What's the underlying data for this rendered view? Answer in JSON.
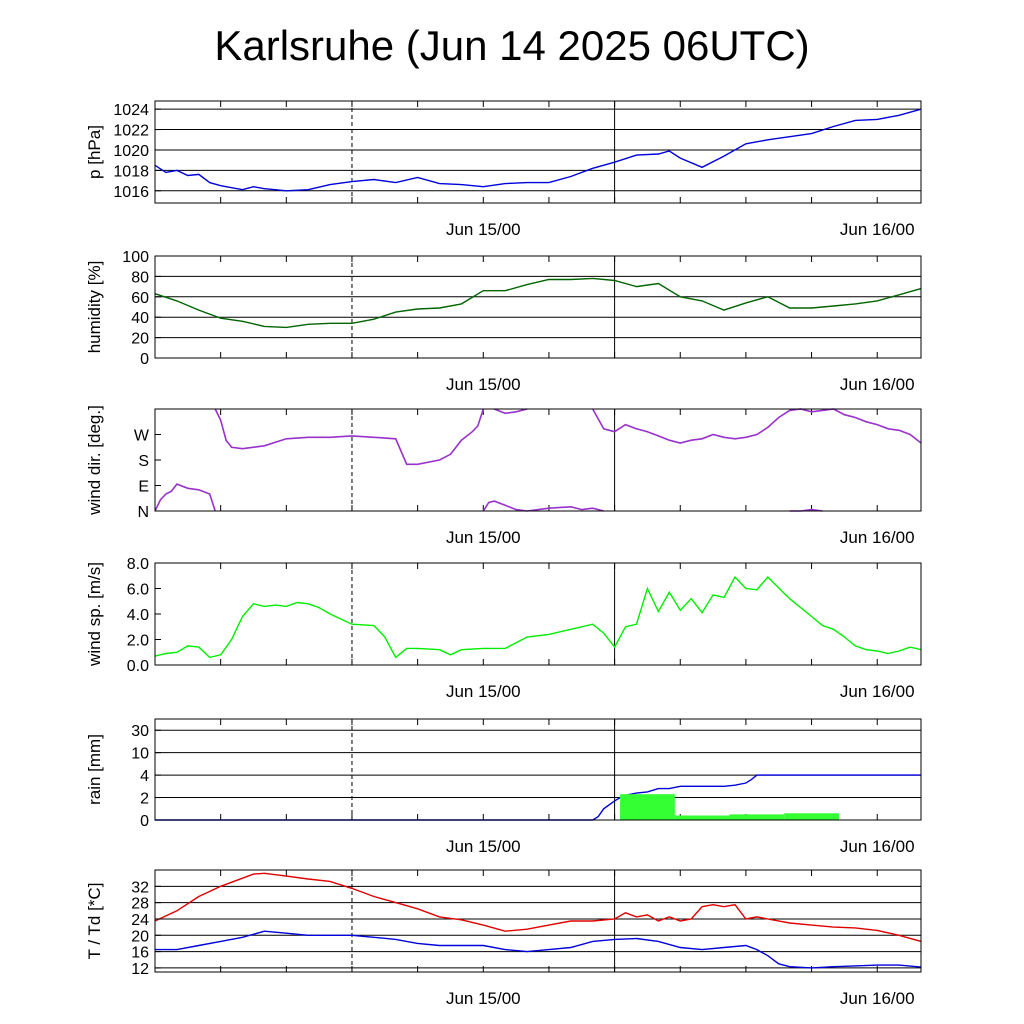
{
  "title": "Karlsruhe (Jun 14 2025 06UTC)",
  "x_ticks": [
    "Jun 15/00",
    "Jun 16/00"
  ],
  "colors": {
    "pressure": "#0000dd",
    "humidity": "#006400",
    "wind_dir": "#9932cc",
    "wind_speed": "#00ee00",
    "rain_cum": "#0000dd",
    "rain_bar": "#33ff33",
    "temperature": "#e00000",
    "dewpoint": "#0000dd"
  },
  "chart_data": [
    {
      "id": "pressure",
      "type": "line",
      "ylabel": "p [hPa]",
      "ylim": [
        1014.8,
        1024.8
      ],
      "yticks": [
        1016,
        1018,
        1020,
        1022,
        1024
      ],
      "yticklabels": [
        "1016",
        "1018",
        "1020",
        "1022",
        "1024"
      ],
      "grid": true,
      "x_unit": "hours since Jun 14 06UTC",
      "series": [
        {
          "color_key": "pressure",
          "x": [
            0,
            1,
            2,
            3,
            4,
            5,
            6,
            7,
            8,
            9,
            10,
            11,
            12,
            14,
            16,
            18,
            20,
            22,
            24,
            26,
            28,
            30,
            32,
            34,
            36,
            38,
            40,
            42,
            44,
            46,
            47,
            48,
            50,
            52,
            54,
            56,
            58,
            60,
            62,
            64,
            66,
            68,
            70
          ],
          "y": [
            1018.5,
            1017.8,
            1018.0,
            1017.5,
            1017.6,
            1016.8,
            1016.5,
            1016.3,
            1016.1,
            1016.4,
            1016.2,
            1016.1,
            1016.0,
            1016.1,
            1016.6,
            1016.9,
            1017.1,
            1016.8,
            1017.3,
            1016.7,
            1016.6,
            1016.4,
            1016.7,
            1016.8,
            1016.8,
            1017.4,
            1018.2,
            1018.8,
            1019.5,
            1019.6,
            1019.9,
            1019.2,
            1018.3,
            1019.4,
            1020.6,
            1021.0,
            1021.3,
            1021.6,
            1022.3,
            1022.9,
            1023.0,
            1023.4,
            1024.0
          ]
        }
      ]
    },
    {
      "id": "humidity",
      "type": "line",
      "ylabel": "humidity [%]",
      "ylim": [
        0,
        100
      ],
      "yticks": [
        0,
        20,
        40,
        60,
        80,
        100
      ],
      "yticklabels": [
        "0",
        "20",
        "40",
        "60",
        "80",
        "100"
      ],
      "grid": true,
      "series": [
        {
          "color_key": "humidity",
          "x": [
            0,
            2,
            4,
            6,
            8,
            10,
            12,
            14,
            16,
            18,
            20,
            22,
            24,
            26,
            28,
            30,
            32,
            34,
            36,
            38,
            40,
            42,
            44,
            46,
            48,
            50,
            52,
            54,
            56,
            58,
            60,
            62,
            64,
            66,
            68,
            70
          ],
          "y": [
            63,
            56,
            47,
            39,
            36,
            31,
            30,
            33,
            34,
            34,
            38,
            45,
            48,
            49,
            53,
            66,
            66,
            72,
            77,
            77,
            78,
            76,
            70,
            73,
            60,
            56,
            47,
            54,
            60,
            49,
            49,
            51,
            53,
            56,
            62,
            68
          ]
        }
      ]
    },
    {
      "id": "wind_dir",
      "type": "line",
      "ylabel": "wind dir. [deg.]",
      "ylim": [
        0,
        360
      ],
      "yticks": [
        0,
        90,
        180,
        270
      ],
      "yticklabels": [
        "N",
        "E",
        "S",
        "W"
      ],
      "grid": false,
      "series": [
        {
          "color_key": "wind_dir",
          "segments": [
            {
              "x": [
                0,
                0.5,
                1,
                1.5,
                2,
                3,
                4,
                5,
                5.5
              ],
              "y": [
                0,
                40,
                60,
                70,
                95,
                80,
                75,
                60,
                0
              ]
            },
            {
              "x": [
                5.5,
                6,
                6.5,
                7,
                8,
                10,
                12,
                14,
                16,
                18,
                20,
                22,
                22.5,
                23,
                24,
                26,
                27,
                28,
                29,
                29.5,
                30
              ],
              "y": [
                360,
                320,
                250,
                225,
                220,
                230,
                255,
                260,
                260,
                265,
                260,
                255,
                210,
                165,
                165,
                180,
                200,
                250,
                280,
                300,
                360
              ]
            },
            {
              "x": [
                30,
                30.5,
                31,
                32,
                33,
                34,
                36,
                38,
                39,
                40,
                41
              ],
              "y": [
                0,
                30,
                35,
                20,
                5,
                0,
                10,
                15,
                5,
                10,
                0
              ]
            },
            {
              "x": [
                31,
                32,
                33,
                34
              ],
              "y": [
                360,
                345,
                350,
                360
              ]
            },
            {
              "x": [
                40,
                41,
                42,
                43,
                44,
                45,
                46,
                47,
                48,
                49,
                50,
                51,
                52,
                53,
                54,
                55,
                56,
                57,
                58,
                59,
                60,
                61,
                62,
                63,
                64,
                65,
                66,
                67,
                68,
                69,
                70
              ],
              "y": [
                360,
                290,
                280,
                305,
                290,
                280,
                265,
                250,
                240,
                250,
                255,
                270,
                260,
                255,
                260,
                270,
                295,
                330,
                355,
                360,
                350,
                355,
                360,
                340,
                330,
                315,
                305,
                290,
                285,
                270,
                240
              ]
            },
            {
              "x": [
                58,
                59,
                60,
                61
              ],
              "y": [
                0,
                0,
                5,
                0
              ]
            }
          ]
        }
      ]
    },
    {
      "id": "wind_speed",
      "type": "line",
      "ylabel": "wind sp. [m/s]",
      "ylim": [
        0,
        8
      ],
      "yticks": [
        0,
        2,
        4,
        6,
        8
      ],
      "yticklabels": [
        "0.0",
        "2.0",
        "4.0",
        "6.0",
        "8.0"
      ],
      "grid": false,
      "series": [
        {
          "color_key": "wind_speed",
          "x": [
            0,
            1,
            2,
            3,
            4,
            5,
            6,
            7,
            8,
            9,
            10,
            11,
            12,
            13,
            14,
            15,
            16,
            18,
            20,
            21,
            22,
            23,
            24,
            26,
            27,
            28,
            30,
            32,
            34,
            36,
            38,
            40,
            41,
            42,
            43,
            44,
            45,
            46,
            47,
            48,
            49,
            50,
            51,
            52,
            53,
            54,
            55,
            56,
            58,
            60,
            61,
            62,
            63,
            64,
            65,
            66,
            67,
            68,
            69,
            70
          ],
          "y": [
            0.7,
            0.9,
            1.0,
            1.5,
            1.4,
            0.6,
            0.8,
            2.0,
            3.8,
            4.8,
            4.6,
            4.7,
            4.6,
            4.9,
            4.8,
            4.5,
            4.0,
            3.2,
            3.1,
            2.2,
            0.6,
            1.3,
            1.3,
            1.2,
            0.8,
            1.2,
            1.3,
            1.3,
            2.2,
            2.4,
            2.8,
            3.2,
            2.5,
            1.4,
            3.0,
            3.2,
            6.0,
            4.2,
            5.7,
            4.3,
            5.2,
            4.1,
            5.5,
            5.3,
            6.9,
            6.0,
            5.9,
            6.9,
            5.2,
            3.8,
            3.1,
            2.8,
            2.2,
            1.5,
            1.2,
            1.1,
            0.9,
            1.1,
            1.4,
            1.2
          ]
        }
      ]
    },
    {
      "id": "rain",
      "type": "line",
      "ylabel": "rain [mm]",
      "ylim_label": "0 to 30 mm, piecewise scale",
      "yticks": [
        0,
        2,
        4,
        10,
        30
      ],
      "yticklabels": [
        "0",
        "2",
        "4",
        "10",
        "30"
      ],
      "grid": true,
      "series": [
        {
          "color_key": "rain_cum",
          "x": [
            0,
            40,
            40.5,
            41,
            42,
            42.5,
            43,
            44,
            45,
            46,
            47,
            48,
            49,
            50,
            51,
            52,
            53,
            54,
            54.5,
            55,
            60,
            65,
            70
          ],
          "y": [
            0,
            0,
            0.3,
            1.0,
            1.7,
            2.0,
            2.2,
            2.4,
            2.5,
            2.8,
            2.8,
            3.0,
            3.0,
            3.0,
            3.0,
            3.0,
            3.1,
            3.3,
            3.6,
            4.0,
            4.0,
            4.0,
            4.0
          ]
        },
        {
          "color_key": "rain_bar",
          "kind": "bar",
          "bars": [
            {
              "x0": 42.5,
              "x1": 47.5,
              "y": 2.3
            },
            {
              "x0": 47.5,
              "x1": 52.5,
              "y": 0.4
            },
            {
              "x0": 52.5,
              "x1": 57.5,
              "y": 0.5
            },
            {
              "x0": 57.5,
              "x1": 62.5,
              "y": 0.6
            }
          ]
        }
      ]
    },
    {
      "id": "temperature",
      "type": "line",
      "ylabel": "T / Td [*C]",
      "ylim": [
        11,
        36
      ],
      "yticks": [
        12,
        16,
        20,
        24,
        28,
        32
      ],
      "yticklabels": [
        "12",
        "16",
        "20",
        "24",
        "28",
        "32"
      ],
      "grid": true,
      "series": [
        {
          "color_key": "temperature",
          "x": [
            0,
            2,
            4,
            6,
            8,
            9,
            10,
            12,
            14,
            16,
            18,
            20,
            22,
            24,
            26,
            28,
            30,
            32,
            34,
            36,
            38,
            40,
            42,
            43,
            44,
            45,
            46,
            47,
            48,
            49,
            50,
            51,
            52,
            53,
            54,
            55,
            56,
            58,
            60,
            62,
            64,
            66,
            68,
            70
          ],
          "y": [
            23.5,
            26,
            29.5,
            32,
            34,
            35,
            35.2,
            34.5,
            33.8,
            33.2,
            31.5,
            29.5,
            28,
            26.5,
            24.5,
            23.8,
            22.5,
            21,
            21.5,
            22.5,
            23.5,
            23.5,
            24,
            25.5,
            24.5,
            25,
            23.5,
            24.5,
            23.5,
            24,
            27,
            27.5,
            27,
            27.5,
            24,
            24.5,
            24,
            23,
            22.5,
            22,
            21.8,
            21.2,
            20,
            18.5
          ]
        },
        {
          "color_key": "dewpoint",
          "x": [
            0,
            2,
            4,
            6,
            8,
            10,
            12,
            14,
            16,
            18,
            20,
            22,
            24,
            26,
            28,
            30,
            32,
            34,
            36,
            38,
            40,
            42,
            44,
            46,
            48,
            50,
            52,
            54,
            55,
            56,
            57,
            58,
            60,
            62,
            64,
            66,
            68,
            70
          ],
          "y": [
            16.5,
            16.5,
            17.5,
            18.5,
            19.5,
            21,
            20.5,
            20,
            20,
            20,
            19.5,
            19,
            18,
            17.5,
            17.5,
            17.5,
            16.5,
            16,
            16.5,
            17,
            18.5,
            19,
            19.2,
            18.5,
            17,
            16.5,
            17,
            17.5,
            16.5,
            15,
            13,
            12.3,
            12,
            12.3,
            12.5,
            12.7,
            12.7,
            12.2
          ]
        }
      ]
    }
  ]
}
